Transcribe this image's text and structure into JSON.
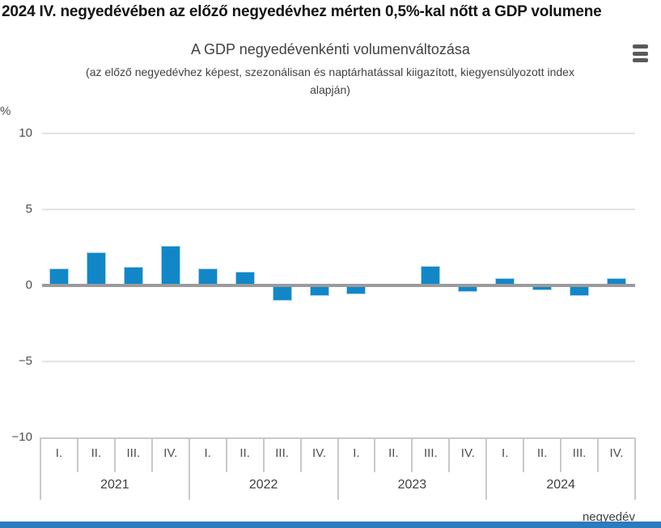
{
  "page": {
    "headline": "2024 IV. negyedévében az előző negyedévhez mérten 0,5%-kal nőtt a GDP volumene"
  },
  "menu": {
    "icon": "hamburger-menu"
  },
  "chart_data": {
    "type": "bar",
    "title": "A GDP negyedévenkénti volumenváltozása",
    "subtitle": "(az előző negyedévhez képest, szezonálisan és naptárhatással kiigazított, kiegyensúlyozott index alapján)",
    "subtitle_lines": [
      "(az előző negyedévhez képest, szezonálisan és naptárhatással kiigazított, kiegyensúlyozott index",
      "alapján)"
    ],
    "ylabel": "%",
    "xlabel": "negyedév",
    "ylim": [
      -10,
      10
    ],
    "yticks": [
      10,
      5,
      0,
      -5,
      -10
    ],
    "ytick_labels": [
      "10",
      "5",
      "0",
      "−5",
      "−10"
    ],
    "grid": true,
    "legend": false,
    "bar_color": "#1287c8",
    "zero_line_color": "#9b9b9b",
    "footer_accent_color": "#2b7bbe",
    "groups": [
      {
        "year": "2021",
        "quarters": [
          "I.",
          "II.",
          "III.",
          "IV."
        ],
        "values": [
          1.1,
          2.2,
          1.2,
          2.6
        ]
      },
      {
        "year": "2022",
        "quarters": [
          "I.",
          "II.",
          "III.",
          "IV."
        ],
        "values": [
          1.1,
          0.9,
          -1.0,
          -0.7
        ]
      },
      {
        "year": "2023",
        "quarters": [
          "I.",
          "II.",
          "III.",
          "IV."
        ],
        "values": [
          -0.6,
          0.1,
          1.3,
          -0.4
        ]
      },
      {
        "year": "2024",
        "quarters": [
          "I.",
          "II.",
          "III.",
          "IV."
        ],
        "values": [
          0.5,
          -0.3,
          -0.7,
          0.5
        ]
      }
    ]
  }
}
